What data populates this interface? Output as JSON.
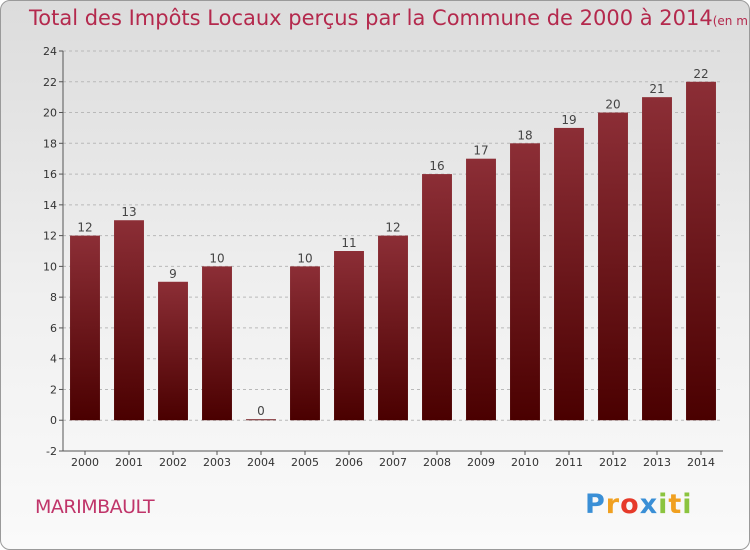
{
  "chart_data": {
    "type": "bar",
    "title": "Total des Impôts Locaux perçus par la Commune de 2000 à 2014",
    "unit_label": "(en milliers d'€)",
    "categories": [
      "2000",
      "2001",
      "2002",
      "2003",
      "2004",
      "2005",
      "2006",
      "2007",
      "2008",
      "2009",
      "2010",
      "2011",
      "2012",
      "2013",
      "2014"
    ],
    "values": [
      12,
      13,
      9,
      10,
      0,
      10,
      11,
      12,
      16,
      17,
      18,
      19,
      20,
      21,
      22
    ],
    "ylim": [
      -2,
      24
    ],
    "yticks": [
      -2,
      0,
      2,
      4,
      6,
      8,
      10,
      12,
      14,
      16,
      18,
      20,
      22,
      24
    ],
    "bar_color_top": "#8c2e36",
    "bar_color_bottom": "#4a0000",
    "xlabel": "",
    "ylabel": ""
  },
  "footer": {
    "commune": "MARIMBAULT",
    "logo_letters": [
      "P",
      "r",
      "o",
      "x",
      "i",
      "t",
      "i"
    ],
    "logo_colors": [
      "#3a8fd6",
      "#f0a020",
      "#e63a2a",
      "#3a8fd6",
      "#8bc43f",
      "#f0a020",
      "#8bc43f"
    ]
  }
}
